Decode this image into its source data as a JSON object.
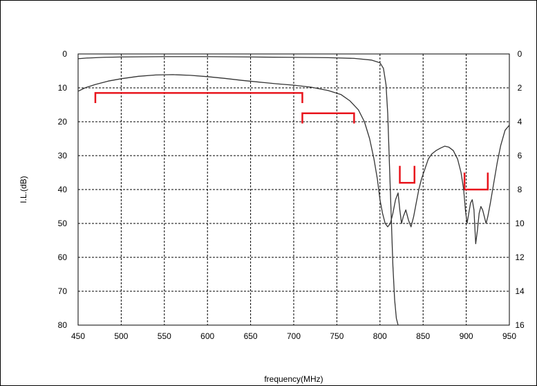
{
  "chart_data": {
    "type": "line",
    "title": "",
    "xlabel": "frequency(MHz)",
    "ylabel": "I.L.(dB)",
    "y2label": "",
    "xlim": [
      450,
      950
    ],
    "ylim": [
      0,
      80
    ],
    "y2lim": [
      0,
      16
    ],
    "x_ticks": [
      "450",
      "500",
      "550",
      "600",
      "650",
      "700",
      "750",
      "800",
      "850",
      "900",
      "950"
    ],
    "y_ticks": [
      "0",
      "10",
      "20",
      "30",
      "40",
      "50",
      "60",
      "70",
      "80"
    ],
    "y2_ticks": [
      "0",
      "2",
      "4",
      "6",
      "8",
      "10",
      "12",
      "14",
      "16"
    ],
    "grid": true,
    "y_inverted": true,
    "colors": {
      "curve": "#333333",
      "spec": "#e8141c",
      "grid": "#000000",
      "axis": "#000000"
    },
    "series": [
      {
        "axis": "left",
        "x": [
          450,
          458,
          470,
          485,
          500,
          520,
          540,
          560,
          580,
          600,
          620,
          640,
          660,
          680,
          700,
          720,
          740,
          755,
          765,
          775,
          782,
          788,
          793,
          797,
          800,
          803,
          806,
          809,
          812,
          815,
          818,
          821,
          823,
          825,
          827,
          830,
          833,
          836,
          839,
          842,
          845,
          848,
          852,
          856,
          860,
          865,
          870,
          875,
          880,
          885,
          890,
          894,
          897,
          899,
          901,
          903,
          905,
          907,
          909,
          911,
          913,
          915,
          917,
          919,
          921,
          923,
          925,
          928,
          932,
          936,
          940,
          945,
          950
        ],
        "y": [
          11,
          10,
          9,
          8,
          7.3,
          6.6,
          6.2,
          6.1,
          6.3,
          6.7,
          7.2,
          7.8,
          8.3,
          8.8,
          9.2,
          9.8,
          10.8,
          12,
          13.8,
          16.5,
          20,
          25,
          31,
          37,
          43,
          47,
          50,
          51,
          50,
          47,
          43,
          41,
          46,
          50,
          48,
          46,
          49,
          51,
          48,
          44,
          40,
          37,
          34,
          31,
          29.5,
          28.5,
          27.8,
          27.2,
          27.5,
          28.5,
          31,
          35,
          40,
          46,
          50,
          47,
          44,
          43,
          46,
          56,
          52,
          47,
          45,
          46,
          48,
          50,
          48,
          44,
          38,
          32,
          27,
          22.5,
          21
        ]
      },
      {
        "axis": "right",
        "x": [
          450,
          460,
          480,
          500,
          550,
          600,
          650,
          700,
          740,
          770,
          790,
          800,
          804,
          807,
          809,
          811,
          813,
          815,
          817,
          819,
          821
        ],
        "y": [
          0.28,
          0.24,
          0.2,
          0.18,
          0.16,
          0.16,
          0.18,
          0.2,
          0.22,
          0.26,
          0.36,
          0.52,
          0.85,
          1.8,
          3.5,
          6.5,
          9.5,
          12.5,
          14.5,
          15.6,
          16
        ]
      }
    ],
    "spec_masks": [
      {
        "x_start": 470,
        "x_end": 710,
        "y": 11.5,
        "y_end": 14.5,
        "edge": "down"
      },
      {
        "x_start": 710,
        "x_end": 770,
        "y": 17.5,
        "y_end": 20.5,
        "edge": "down"
      },
      {
        "x_start": 823,
        "x_end": 840,
        "y": 38,
        "y_end": 33,
        "edge": "up"
      },
      {
        "x_start": 898,
        "x_end": 925,
        "y": 40,
        "y_end": 35,
        "edge": "up"
      }
    ]
  }
}
